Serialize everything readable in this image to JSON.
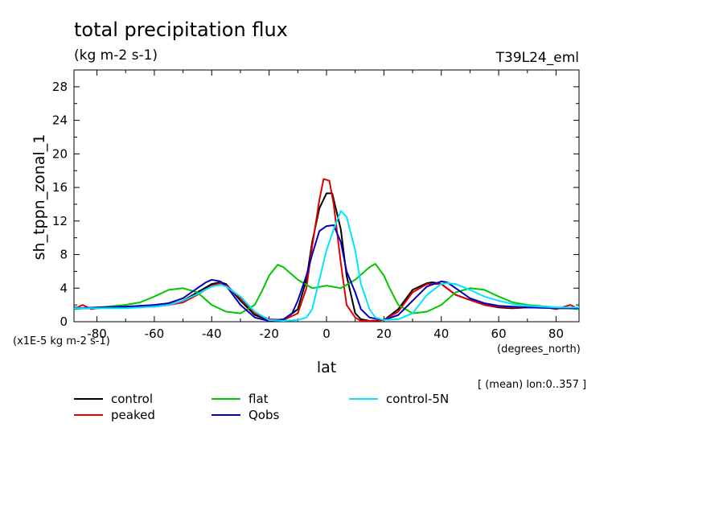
{
  "chart_data": {
    "type": "line",
    "title": "total precipitation flux",
    "units": "(kg m-2 s-1)",
    "run_label": "T39L24_eml",
    "ylabel": "sh_tppn_zonal_1",
    "xlabel": "lat",
    "x_units": "(degrees_north)",
    "y_scale_note": "(x1E-5 kg m-2 s-1)",
    "averaging_note": "[ (mean) lon:0..357 ]",
    "xlim": [
      -88,
      88
    ],
    "ylim": [
      0,
      30
    ],
    "xticks": [
      -80,
      -60,
      -40,
      -20,
      0,
      20,
      40,
      60,
      80
    ],
    "yticks": [
      0,
      4,
      8,
      12,
      16,
      20,
      24,
      28
    ],
    "series": [
      {
        "name": "control",
        "color": "#000000",
        "x": [
          -88,
          -85,
          -80,
          -75,
          -70,
          -65,
          -60,
          -55,
          -50,
          -45,
          -40,
          -37,
          -35,
          -30,
          -25,
          -20,
          -15,
          -10,
          -7,
          -5,
          -2.5,
          0,
          2,
          5,
          7,
          10,
          12,
          15,
          20,
          25,
          30,
          35,
          37,
          40,
          45,
          50,
          55,
          60,
          65,
          70,
          75,
          80,
          85,
          88
        ],
        "y": [
          1.7,
          1.6,
          1.6,
          1.7,
          1.7,
          1.8,
          1.8,
          2.0,
          2.5,
          3.5,
          4.5,
          4.7,
          4.5,
          2.5,
          0.8,
          0.2,
          0.2,
          1.5,
          5.0,
          9.5,
          13.5,
          15.3,
          15.3,
          11.0,
          5.5,
          1.0,
          0.3,
          0.1,
          0.2,
          1.5,
          3.8,
          4.6,
          4.7,
          4.5,
          3.2,
          2.6,
          2.0,
          1.7,
          1.6,
          1.7,
          1.7,
          1.6,
          1.6,
          1.7
        ]
      },
      {
        "name": "peaked",
        "color": "#e00000",
        "x": [
          -88,
          -85,
          -82,
          -80,
          -75,
          -70,
          -65,
          -60,
          -55,
          -50,
          -45,
          -40,
          -37,
          -35,
          -30,
          -25,
          -20,
          -15,
          -10,
          -7,
          -5,
          -2.5,
          -1,
          1,
          2.5,
          5,
          7,
          10,
          12,
          15,
          20,
          25,
          30,
          35,
          40,
          45,
          50,
          55,
          60,
          65,
          70,
          75,
          80,
          85,
          88
        ],
        "y": [
          1.5,
          2.0,
          1.5,
          1.6,
          1.8,
          1.8,
          1.8,
          1.8,
          2.0,
          2.3,
          3.2,
          4.3,
          4.6,
          4.4,
          2.8,
          1.0,
          0.3,
          0.2,
          1.0,
          4.0,
          9.0,
          14.5,
          17.0,
          16.8,
          14.0,
          7.0,
          2.0,
          0.5,
          0.1,
          0.1,
          0.2,
          1.2,
          3.5,
          4.5,
          4.5,
          3.2,
          2.6,
          2.0,
          1.8,
          1.7,
          1.7,
          1.8,
          1.5,
          2.0,
          1.5
        ]
      },
      {
        "name": "flat",
        "color": "#00c800",
        "x": [
          -88,
          -80,
          -70,
          -65,
          -60,
          -55,
          -50,
          -45,
          -40,
          -35,
          -30,
          -25,
          -22,
          -20,
          -17,
          -15,
          -10,
          -5,
          0,
          5,
          10,
          15,
          17,
          20,
          22,
          25,
          30,
          35,
          40,
          45,
          50,
          55,
          60,
          65,
          70,
          80,
          88
        ],
        "y": [
          1.5,
          1.7,
          2.0,
          2.3,
          3.0,
          3.8,
          4.0,
          3.5,
          2.0,
          1.2,
          1.0,
          2.0,
          4.0,
          5.5,
          6.8,
          6.5,
          5.0,
          4.0,
          4.3,
          4.0,
          5.0,
          6.5,
          6.9,
          5.5,
          4.0,
          2.0,
          1.0,
          1.2,
          2.0,
          3.5,
          4.0,
          3.8,
          3.0,
          2.3,
          2.0,
          1.7,
          1.5
        ]
      },
      {
        "name": "Qobs",
        "color": "#0000c0",
        "x": [
          -88,
          -80,
          -70,
          -60,
          -55,
          -50,
          -45,
          -42,
          -40,
          -37,
          -35,
          -30,
          -25,
          -20,
          -15,
          -12,
          -10,
          -7,
          -5,
          -2.5,
          0,
          2.5,
          5,
          7,
          10,
          12,
          15,
          20,
          25,
          30,
          35,
          40,
          42,
          45,
          50,
          55,
          60,
          70,
          80,
          88
        ],
        "y": [
          1.6,
          1.7,
          1.8,
          2.0,
          2.2,
          2.8,
          4.0,
          4.7,
          5.0,
          4.8,
          4.3,
          2.0,
          0.5,
          0.1,
          0.3,
          1.0,
          2.5,
          5.5,
          8.0,
          10.8,
          11.4,
          11.5,
          9.5,
          6.0,
          3.5,
          1.5,
          0.5,
          0.2,
          0.8,
          2.5,
          4.2,
          4.8,
          4.7,
          4.0,
          2.8,
          2.2,
          1.9,
          1.7,
          1.6,
          1.6
        ]
      },
      {
        "name": "control-5N",
        "color": "#00e5ff",
        "x": [
          -88,
          -80,
          -70,
          -60,
          -55,
          -50,
          -45,
          -40,
          -37,
          -35,
          -30,
          -25,
          -20,
          -15,
          -10,
          -7,
          -5,
          -2.5,
          0,
          2.5,
          5,
          7,
          10,
          12,
          15,
          17,
          20,
          25,
          30,
          35,
          40,
          42,
          45,
          50,
          55,
          60,
          65,
          70,
          80,
          88
        ],
        "y": [
          1.6,
          1.6,
          1.6,
          1.8,
          2.0,
          2.5,
          3.3,
          4.2,
          4.4,
          4.2,
          3.0,
          1.2,
          0.2,
          0.1,
          0.2,
          0.5,
          1.5,
          5.0,
          8.5,
          11.0,
          13.2,
          12.5,
          8.5,
          4.5,
          1.5,
          0.5,
          0.2,
          0.3,
          1.0,
          3.2,
          4.5,
          4.6,
          4.5,
          3.8,
          3.0,
          2.5,
          2.1,
          1.9,
          1.7,
          1.7
        ]
      }
    ]
  }
}
